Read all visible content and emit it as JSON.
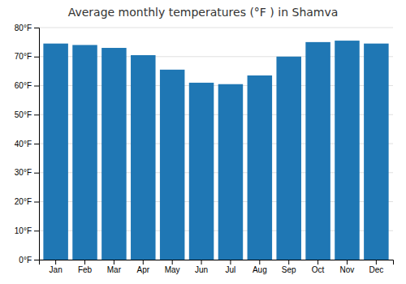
{
  "chart_data": {
    "type": "bar",
    "title": "Average monthly temperatures (°F ) in Shamva",
    "categories": [
      "Jan",
      "Feb",
      "Mar",
      "Apr",
      "May",
      "Jun",
      "Jul",
      "Aug",
      "Sep",
      "Oct",
      "Nov",
      "Dec"
    ],
    "values": [
      74.5,
      74.0,
      73.0,
      70.5,
      65.5,
      61.0,
      60.5,
      63.5,
      70.0,
      75.0,
      75.5,
      74.5
    ],
    "ylim": [
      0,
      80
    ],
    "yticks": [
      {
        "value": 0,
        "label": "0°F"
      },
      {
        "value": 10,
        "label": "10°F"
      },
      {
        "value": 20,
        "label": "20°F"
      },
      {
        "value": 30,
        "label": "30°F"
      },
      {
        "value": 40,
        "label": "40°F"
      },
      {
        "value": 50,
        "label": "50°F"
      },
      {
        "value": 60,
        "label": "60°F"
      },
      {
        "value": 70,
        "label": "70°F"
      },
      {
        "value": 80,
        "label": "80°F"
      }
    ],
    "grid": true
  }
}
